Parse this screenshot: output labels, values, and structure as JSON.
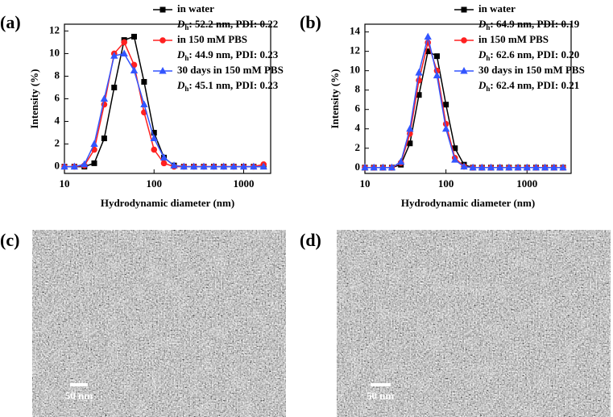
{
  "chart_data": [
    {
      "type": "line",
      "panel_label": "(a)",
      "x_label": "Hydrodynamic diameter (nm)",
      "y_label": "Intensity (%)",
      "xscale": "log",
      "xlim": [
        10,
        2000
      ],
      "ylim": [
        -0.6,
        12.6
      ],
      "xticks": [
        10,
        100,
        1000
      ],
      "yticks": [
        0,
        2,
        4,
        6,
        8,
        10,
        12
      ],
      "legend": "upper right",
      "detail_symbol": "D",
      "detail_subscript": "h",
      "x": [
        10,
        12.9,
        16.7,
        21.5,
        27.8,
        35.9,
        46.4,
        59.9,
        77.4,
        100,
        129,
        167,
        215,
        278,
        359,
        464,
        599,
        774,
        1000,
        1292,
        1668
      ],
      "series": [
        {
          "name": "in water",
          "detail": ": 52.2 nm, PDI: 0.22",
          "color": "#000000",
          "marker": "square",
          "values": [
            0,
            0,
            0,
            0.3,
            2.5,
            7,
            11.2,
            11.5,
            7.5,
            3,
            0.8,
            0.1,
            0,
            0,
            0,
            0,
            0,
            0,
            0,
            0,
            0
          ]
        },
        {
          "name": "in 150 mM PBS",
          "detail": ": 44.9 nm, PDI: 0.23",
          "color": "#ff2020",
          "marker": "circle",
          "values": [
            0,
            0,
            0.1,
            1.5,
            5.5,
            10,
            11,
            9,
            4.8,
            1.5,
            0.3,
            0,
            0,
            0,
            0,
            0,
            0,
            0,
            0,
            0,
            0.2
          ]
        },
        {
          "name": "30 days in 150 mM PBS",
          "detail": ": 45.1 nm, PDI: 0.23",
          "color": "#3355ff",
          "marker": "triangle",
          "values": [
            0,
            0,
            0.2,
            2,
            6,
            9.8,
            10,
            8.5,
            5.5,
            2.5,
            0.8,
            0.1,
            0,
            0,
            0,
            0,
            0,
            0,
            0,
            0,
            0
          ]
        }
      ]
    },
    {
      "type": "line",
      "panel_label": "(b)",
      "x_label": "Hydrodynamic diameter (nm)",
      "y_label": "Intensity (%)",
      "xscale": "log",
      "xlim": [
        10,
        3500
      ],
      "ylim": [
        -0.6,
        14.8
      ],
      "xticks": [
        10,
        100,
        1000
      ],
      "yticks": [
        0,
        2,
        4,
        6,
        8,
        10,
        12,
        14
      ],
      "legend": "upper right",
      "detail_symbol": "D",
      "detail_subscript": "h",
      "x": [
        10,
        12.9,
        16.7,
        21.5,
        27.8,
        35.9,
        46.4,
        59.9,
        77.4,
        100,
        129,
        167,
        215,
        278,
        359,
        464,
        599,
        774,
        1000,
        1292,
        1668,
        2154,
        2783
      ],
      "series": [
        {
          "name": "in water",
          "detail": ": 64.9 nm, PDI: 0.19",
          "color": "#000000",
          "marker": "square",
          "values": [
            0,
            0,
            0,
            0,
            0.3,
            2.5,
            7.5,
            12,
            11.5,
            6.5,
            2,
            0.3,
            0,
            0,
            0,
            0,
            0,
            0,
            0,
            0,
            0,
            0,
            0
          ]
        },
        {
          "name": "in 150 mM PBS",
          "detail": ": 62.6 nm, PDI: 0.20",
          "color": "#ff2020",
          "marker": "circle",
          "values": [
            0,
            0,
            0,
            0,
            0.5,
            3.5,
            9,
            12.9,
            10,
            4.5,
            1,
            0.1,
            0,
            0,
            0,
            0,
            0,
            0,
            0,
            0,
            0,
            0,
            0
          ]
        },
        {
          "name": "30 days in 150 mM PBS",
          "detail": ": 62.4 nm, PDI: 0.21",
          "color": "#3355ff",
          "marker": "triangle",
          "values": [
            0,
            0,
            0,
            0,
            0.6,
            4,
            9.8,
            13.5,
            9.5,
            4,
            0.8,
            0.1,
            0,
            0,
            0,
            0,
            0,
            0,
            0,
            0,
            0,
            0,
            0
          ]
        }
      ]
    }
  ],
  "images": [
    {
      "panel_label": "(c)",
      "scale_bar": "50 nm"
    },
    {
      "panel_label": "(d)",
      "scale_bar": "50 nm"
    }
  ]
}
